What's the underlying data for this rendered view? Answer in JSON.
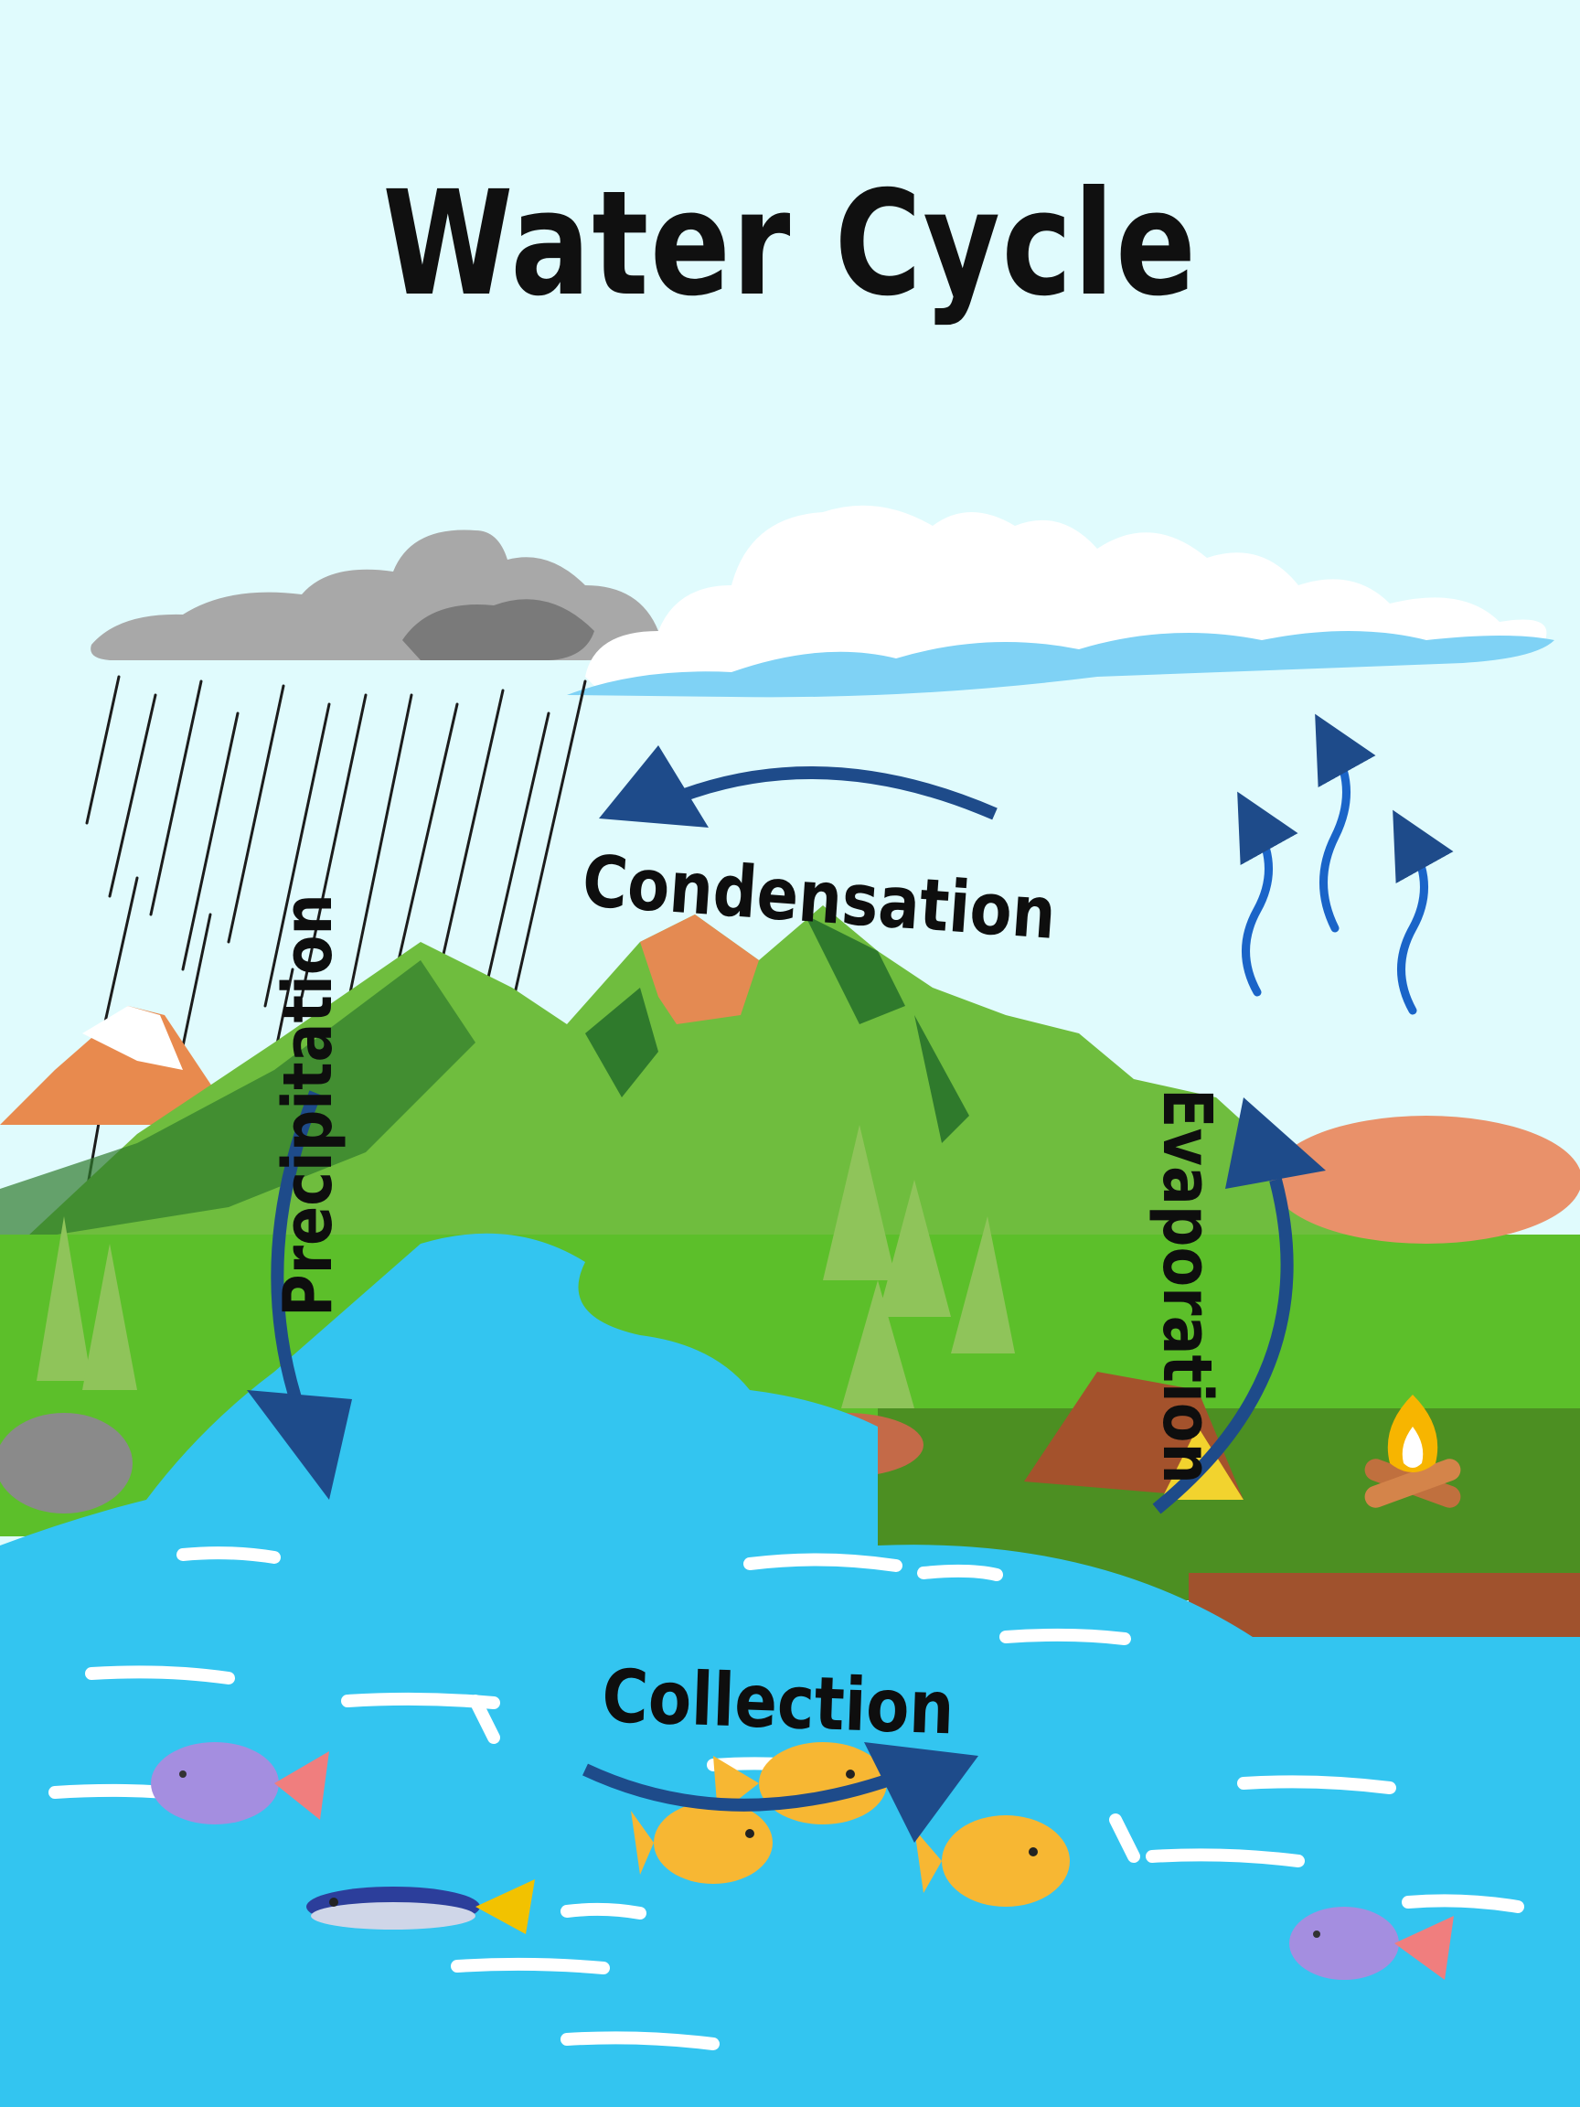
{
  "title": "Water Cycle",
  "stages": {
    "condensation": "Condensation",
    "precipitation": "Precipitation",
    "evaporation": "Evaporation",
    "collection": "Collection"
  },
  "colors": {
    "sky": "#e0fbfd",
    "water": "#33c5f0",
    "arrow": "#1e4b8a",
    "grass": "#5cbf2a",
    "mountain": "#5ba63a",
    "text": "#0e0e0e"
  }
}
